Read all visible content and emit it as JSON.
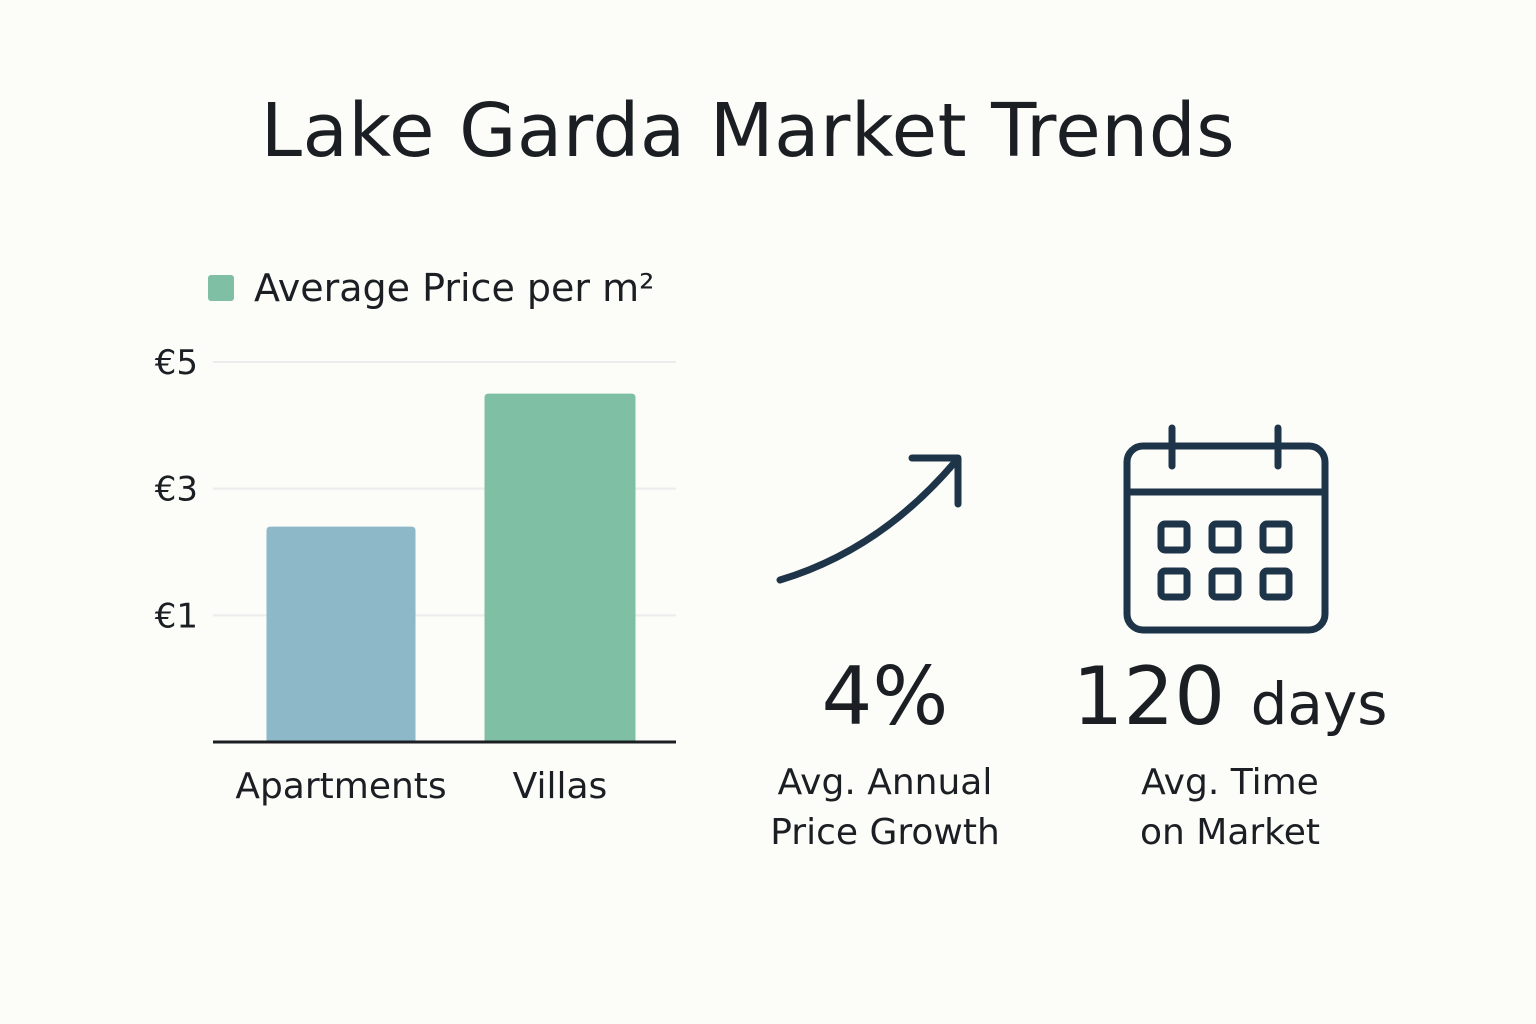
{
  "title": "Lake Garda Market Trends",
  "colors": {
    "apartments": "#8db8c8",
    "villas": "#7fbfa3",
    "icon": "#1e3448",
    "grid": "#ececec",
    "axis": "#1b1f23"
  },
  "chart_data": {
    "type": "bar",
    "title": "Lake Garda Market Trends",
    "legend": [
      "Average Price per m²"
    ],
    "legend_placement": "top-left",
    "categories": [
      "Apartments",
      "Villas"
    ],
    "values": [
      2.4,
      4.5
    ],
    "yticks": [
      1,
      3,
      5
    ],
    "ytick_labels": [
      "€1",
      "€3",
      "€5"
    ],
    "ylim": [
      -1,
      5
    ],
    "grid": true,
    "xlabel": "",
    "ylabel": ""
  },
  "stats": [
    {
      "value": "4%",
      "label_line1": "Avg. Annual",
      "label_line2": "Price Growth",
      "icon": "trend-up-arrow-icon"
    },
    {
      "value_number": "120",
      "value_unit": "days",
      "label_line1": "Avg. Time",
      "label_line2": "on Market",
      "icon": "calendar-icon"
    }
  ]
}
